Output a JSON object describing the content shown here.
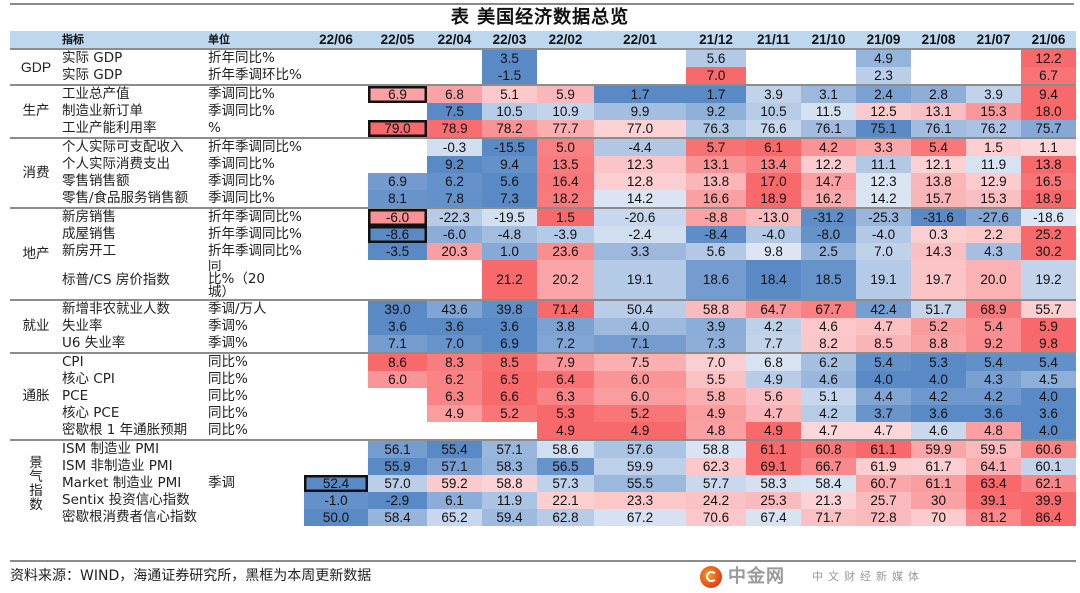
{
  "title": "表 美国经济数据总览",
  "header": {
    "indicator_label": "指标",
    "unit_label": "单位",
    "periods": [
      "22/06",
      "22/05",
      "22/04",
      "22/03",
      "22/02",
      "22/01",
      "21/12",
      "21/11",
      "21/10",
      "21/09",
      "21/08",
      "21/07",
      "21/06"
    ]
  },
  "groups": [
    {
      "category": "GDP",
      "rows": [
        {
          "indicator": "实际 GDP",
          "unit": "折年同比%",
          "values": [
            null,
            null,
            null,
            "3.5",
            null,
            null,
            "5.6",
            null,
            null,
            "4.9",
            null,
            null,
            "12.2"
          ],
          "boxed": []
        },
        {
          "indicator": "实际 GDP",
          "unit": "折年季调环比%",
          "values": [
            null,
            null,
            null,
            "-1.5",
            null,
            null,
            "7.0",
            null,
            null,
            "2.3",
            null,
            null,
            "6.7"
          ],
          "boxed": []
        }
      ]
    },
    {
      "category": "生产",
      "rows": [
        {
          "indicator": "工业总产值",
          "unit": "季调同比%",
          "values": [
            null,
            "6.9",
            "6.8",
            "5.1",
            "5.9",
            "1.7",
            "1.7",
            "3.9",
            "3.1",
            "2.4",
            "2.8",
            "3.9",
            "9.4"
          ],
          "boxed": [
            1
          ]
        },
        {
          "indicator": "制造业新订单",
          "unit": "季调同比%",
          "values": [
            null,
            null,
            "7.5",
            "10.5",
            "10.9",
            "9.9",
            "9.2",
            "10.5",
            "11.5",
            "12.5",
            "13.1",
            "15.3",
            "18.0"
          ],
          "boxed": []
        },
        {
          "indicator": "工业产能利用率",
          "unit": "%",
          "values": [
            null,
            "79.0",
            "78.9",
            "78.2",
            "77.7",
            "77.0",
            "76.3",
            "76.6",
            "76.1",
            "75.1",
            "76.1",
            "76.2",
            "75.7"
          ],
          "boxed": [
            1
          ]
        }
      ]
    },
    {
      "category": "消费",
      "rows": [
        {
          "indicator": "个人实际可支配收入",
          "unit": "折年季调同比%",
          "values": [
            null,
            null,
            "-0.3",
            "-15.5",
            "5.0",
            "-4.4",
            "5.7",
            "6.1",
            "4.2",
            "3.3",
            "5.4",
            "1.5",
            "1.1"
          ],
          "boxed": []
        },
        {
          "indicator": "个人实际消费支出",
          "unit": "季调同比%",
          "values": [
            null,
            null,
            "9.2",
            "9.4",
            "13.5",
            "12.3",
            "13.1",
            "13.4",
            "12.2",
            "11.1",
            "12.1",
            "11.9",
            "13.8"
          ],
          "boxed": []
        },
        {
          "indicator": "零售销售额",
          "unit": "季调同比%",
          "values": [
            null,
            "6.9",
            "6.2",
            "5.6",
            "16.4",
            "12.8",
            "13.8",
            "17.0",
            "14.7",
            "12.3",
            "13.8",
            "12.9",
            "16.5"
          ],
          "boxed": []
        },
        {
          "indicator": "零售/食品服务销售额",
          "unit": "季调同比%",
          "values": [
            null,
            "8.1",
            "7.8",
            "7.3",
            "18.2",
            "14.2",
            "16.6",
            "18.9",
            "16.2",
            "14.2",
            "15.7",
            "15.3",
            "18.9"
          ],
          "boxed": []
        }
      ]
    },
    {
      "category": "地产",
      "rows": [
        {
          "indicator": "新房销售",
          "unit": "折年季调同比%",
          "values": [
            null,
            "-6.0",
            "-22.3",
            "-19.5",
            "1.5",
            "-20.6",
            "-8.8",
            "-13.0",
            "-31.2",
            "-25.3",
            "-31.6",
            "-27.6",
            "-18.6"
          ],
          "boxed": [
            1
          ]
        },
        {
          "indicator": "成屋销售",
          "unit": "折年季调同比%",
          "values": [
            null,
            "-8.6",
            "-6.0",
            "-4.8",
            "-3.9",
            "-2.4",
            "-8.4",
            "-4.0",
            "-8.0",
            "-4.0",
            "0.3",
            "2.2",
            "25.2"
          ],
          "boxed": [
            1
          ]
        },
        {
          "indicator": "新房开工",
          "unit": "折年季调同比%",
          "values": [
            null,
            "-3.5",
            "20.3",
            "1.0",
            "23.6",
            "3.3",
            "5.6",
            "9.8",
            "2.5",
            "7.0",
            "14.3",
            "4.3",
            "30.2"
          ],
          "boxed": []
        },
        {
          "indicator": "标普/CS 房价指数",
          "unit": "同比%（20城）",
          "values": [
            null,
            null,
            null,
            "21.2",
            "20.2",
            "19.1",
            "18.6",
            "18.4",
            "18.5",
            "19.1",
            "19.7",
            "20.0",
            "19.2"
          ],
          "boxed": [],
          "tall": true
        }
      ]
    },
    {
      "category": "就业",
      "rows": [
        {
          "indicator": "新增非农就业人数",
          "unit": "季调/万人",
          "values": [
            null,
            "39.0",
            "43.6",
            "39.8",
            "71.4",
            "50.4",
            "58.8",
            "64.7",
            "67.7",
            "42.4",
            "51.7",
            "68.9",
            "55.7"
          ],
          "boxed": []
        },
        {
          "indicator": "失业率",
          "unit": "季调%",
          "values": [
            null,
            "3.6",
            "3.6",
            "3.6",
            "3.8",
            "4.0",
            "3.9",
            "4.2",
            "4.6",
            "4.7",
            "5.2",
            "5.4",
            "5.9"
          ],
          "boxed": []
        },
        {
          "indicator": "U6 失业率",
          "unit": "季调%",
          "values": [
            null,
            "7.1",
            "7.0",
            "6.9",
            "7.2",
            "7.1",
            "7.3",
            "7.7",
            "8.2",
            "8.5",
            "8.8",
            "9.2",
            "9.8"
          ],
          "boxed": []
        }
      ]
    },
    {
      "category": "通胀",
      "rows": [
        {
          "indicator": "CPI",
          "unit": "同比%",
          "values": [
            null,
            "8.6",
            "8.3",
            "8.5",
            "7.9",
            "7.5",
            "7.0",
            "6.8",
            "6.2",
            "5.4",
            "5.3",
            "5.4",
            "5.4"
          ],
          "boxed": []
        },
        {
          "indicator": "核心 CPI",
          "unit": "同比%",
          "values": [
            null,
            "6.0",
            "6.2",
            "6.5",
            "6.4",
            "6.0",
            "5.5",
            "4.9",
            "4.6",
            "4.0",
            "4.0",
            "4.3",
            "4.5"
          ],
          "boxed": []
        },
        {
          "indicator": "PCE",
          "unit": "同比%",
          "values": [
            null,
            null,
            "6.3",
            "6.6",
            "6.3",
            "6.0",
            "5.8",
            "5.6",
            "5.1",
            "4.4",
            "4.2",
            "4.2",
            "4.0"
          ],
          "boxed": []
        },
        {
          "indicator": "核心 PCE",
          "unit": "同比%",
          "values": [
            null,
            null,
            "4.9",
            "5.2",
            "5.3",
            "5.2",
            "4.9",
            "4.7",
            "4.2",
            "3.7",
            "3.6",
            "3.6",
            "3.6"
          ],
          "boxed": []
        },
        {
          "indicator": "密歇根 1 年通胀预期",
          "unit": "同比%",
          "values": [
            null,
            null,
            null,
            null,
            "4.9",
            "4.9",
            "4.8",
            "4.9",
            "4.7",
            "4.7",
            "4.6",
            "4.8",
            "4.0"
          ],
          "boxed": []
        }
      ]
    },
    {
      "category": "景气指数",
      "rows": [
        {
          "indicator": "ISM 制造业 PMI",
          "unit": "",
          "values": [
            null,
            "56.1",
            "55.4",
            "57.1",
            "58.6",
            "57.6",
            "58.8",
            "61.1",
            "60.8",
            "61.1",
            "59.9",
            "59.5",
            "60.6"
          ],
          "boxed": []
        },
        {
          "indicator": "ISM 非制造业 PMI",
          "unit": "",
          "values": [
            null,
            "55.9",
            "57.1",
            "58.3",
            "56.5",
            "59.9",
            "62.3",
            "69.1",
            "66.7",
            "61.9",
            "61.7",
            "64.1",
            "60.1"
          ],
          "boxed": []
        },
        {
          "indicator": "Market 制造业 PMI",
          "unit": "季调",
          "values": [
            "52.4",
            "57.0",
            "59.2",
            "58.8",
            "57.3",
            "55.5",
            "57.7",
            "58.3",
            "58.4",
            "60.7",
            "61.1",
            "63.4",
            "62.1"
          ],
          "boxed": [
            0
          ]
        },
        {
          "indicator": "Sentix 投资信心指数",
          "unit": "",
          "values": [
            "-1.0",
            "-2.9",
            "6.1",
            "11.9",
            "22.1",
            "23.3",
            "24.2",
            "25.3",
            "21.3",
            "25.7",
            "30",
            "39.1",
            "39.9"
          ],
          "boxed": []
        },
        {
          "indicator": "密歇根消费者信心指数",
          "unit": "",
          "values": [
            "50.0",
            "58.4",
            "65.2",
            "59.4",
            "62.8",
            "67.2",
            "70.6",
            "67.4",
            "71.7",
            "72.8",
            "70",
            "81.2",
            "86.4"
          ],
          "boxed": []
        }
      ]
    }
  ],
  "source_note": "资料来源：WIND，海通证券研究所，黑框为本周更新数据",
  "watermark": {
    "logo_icon": "swirl-logo-icon",
    "brand": "中金网",
    "tagline": "中文财经新媒体"
  },
  "colors": {
    "header_bg": "#bdd7ee",
    "high": "#f8696b",
    "mid": "#fcfcff",
    "low": "#5a8ac6",
    "box_border": "#111111"
  }
}
